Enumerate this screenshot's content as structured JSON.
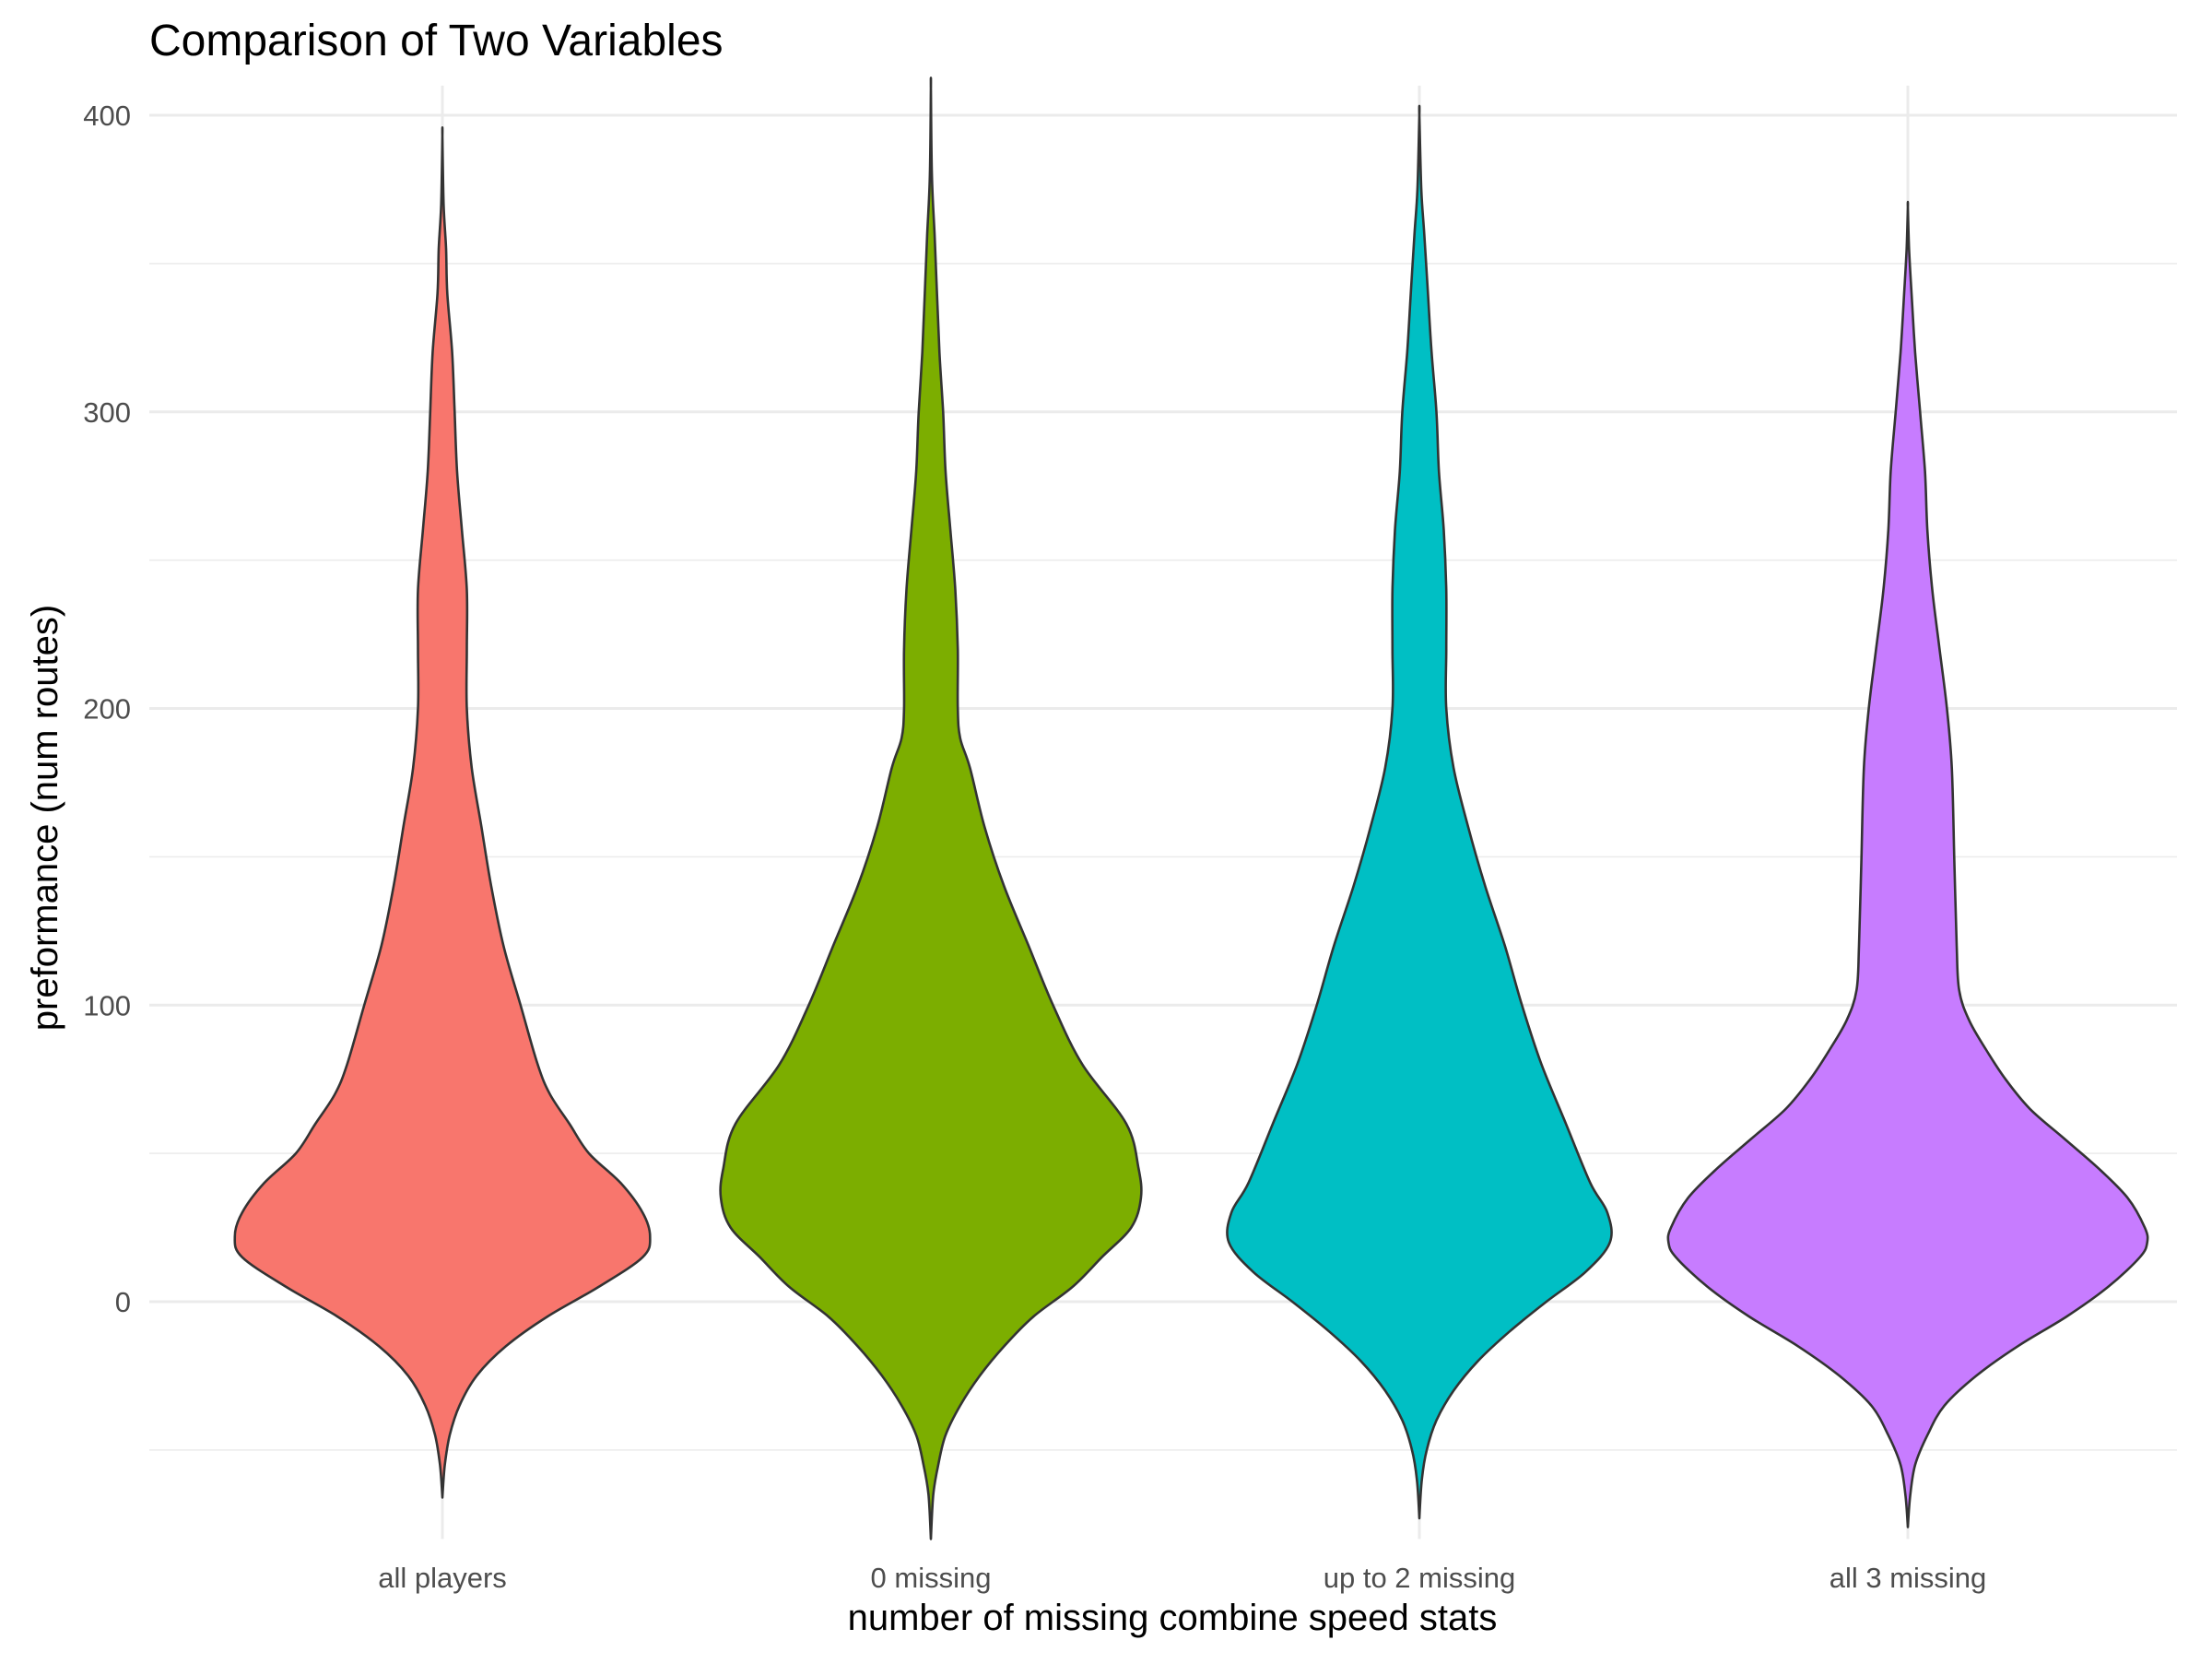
{
  "chart_data": {
    "type": "violin",
    "title": "Comparison of Two Variables",
    "xlabel": "number of missing combine speed stats",
    "ylabel": "preformance (num routes)",
    "ylim": [
      -80,
      410
    ],
    "yticks": [
      0,
      100,
      200,
      300,
      400
    ],
    "grid": true,
    "legend": "none",
    "categories": [
      "all players",
      "0 missing",
      "up to 2 missing",
      "all 3 missing"
    ],
    "colors": [
      "#F8766D",
      "#7CAE00",
      "#00BFC4",
      "#C77CFF"
    ],
    "series": [
      {
        "category": "all players",
        "min": -66,
        "max": 393,
        "profile": [
          [
            -66,
            0
          ],
          [
            -55,
            0.01
          ],
          [
            -45,
            0.03
          ],
          [
            -35,
            0.07
          ],
          [
            -25,
            0.14
          ],
          [
            -15,
            0.26
          ],
          [
            -5,
            0.43
          ],
          [
            5,
            0.64
          ],
          [
            15,
            0.82
          ],
          [
            22,
            0.85
          ],
          [
            30,
            0.82
          ],
          [
            40,
            0.73
          ],
          [
            50,
            0.6
          ],
          [
            60,
            0.52
          ],
          [
            70,
            0.44
          ],
          [
            80,
            0.39
          ],
          [
            100,
            0.32
          ],
          [
            120,
            0.25
          ],
          [
            140,
            0.2
          ],
          [
            160,
            0.16
          ],
          [
            180,
            0.12
          ],
          [
            200,
            0.1
          ],
          [
            220,
            0.1
          ],
          [
            240,
            0.1
          ],
          [
            260,
            0.08
          ],
          [
            280,
            0.06
          ],
          [
            300,
            0.05
          ],
          [
            320,
            0.04
          ],
          [
            340,
            0.02
          ],
          [
            355,
            0.015
          ],
          [
            370,
            0.005
          ],
          [
            393,
            0
          ]
        ]
      },
      {
        "category": "0 missing",
        "min": -80,
        "max": 409,
        "profile": [
          [
            -80,
            0
          ],
          [
            -65,
            0.01
          ],
          [
            -55,
            0.03
          ],
          [
            -45,
            0.06
          ],
          [
            -35,
            0.12
          ],
          [
            -25,
            0.2
          ],
          [
            -15,
            0.3
          ],
          [
            -5,
            0.42
          ],
          [
            5,
            0.58
          ],
          [
            15,
            0.7
          ],
          [
            25,
            0.82
          ],
          [
            35,
            0.86
          ],
          [
            45,
            0.85
          ],
          [
            60,
            0.8
          ],
          [
            80,
            0.62
          ],
          [
            100,
            0.5
          ],
          [
            120,
            0.4
          ],
          [
            140,
            0.3
          ],
          [
            160,
            0.22
          ],
          [
            180,
            0.16
          ],
          [
            190,
            0.12
          ],
          [
            200,
            0.11
          ],
          [
            220,
            0.11
          ],
          [
            240,
            0.1
          ],
          [
            260,
            0.08
          ],
          [
            280,
            0.06
          ],
          [
            300,
            0.05
          ],
          [
            320,
            0.035
          ],
          [
            340,
            0.025
          ],
          [
            360,
            0.015
          ],
          [
            380,
            0.004
          ],
          [
            409,
            0
          ]
        ]
      },
      {
        "category": "up to 2 missing",
        "min": -73,
        "max": 400,
        "profile": [
          [
            -73,
            0
          ],
          [
            -60,
            0.01
          ],
          [
            -50,
            0.03
          ],
          [
            -40,
            0.07
          ],
          [
            -30,
            0.14
          ],
          [
            -20,
            0.24
          ],
          [
            -10,
            0.37
          ],
          [
            0,
            0.52
          ],
          [
            10,
            0.68
          ],
          [
            20,
            0.78
          ],
          [
            30,
            0.77
          ],
          [
            40,
            0.7
          ],
          [
            60,
            0.6
          ],
          [
            80,
            0.5
          ],
          [
            100,
            0.42
          ],
          [
            120,
            0.35
          ],
          [
            140,
            0.27
          ],
          [
            160,
            0.2
          ],
          [
            180,
            0.14
          ],
          [
            200,
            0.11
          ],
          [
            220,
            0.11
          ],
          [
            240,
            0.11
          ],
          [
            260,
            0.1
          ],
          [
            280,
            0.08
          ],
          [
            300,
            0.07
          ],
          [
            320,
            0.05
          ],
          [
            340,
            0.035
          ],
          [
            360,
            0.02
          ],
          [
            375,
            0.008
          ],
          [
            400,
            0
          ]
        ]
      },
      {
        "category": "all 3 missing",
        "min": -76,
        "max": 369,
        "profile": [
          [
            -76,
            0
          ],
          [
            -65,
            0.01
          ],
          [
            -55,
            0.03
          ],
          [
            -45,
            0.08
          ],
          [
            -35,
            0.15
          ],
          [
            -25,
            0.28
          ],
          [
            -15,
            0.45
          ],
          [
            -5,
            0.65
          ],
          [
            5,
            0.82
          ],
          [
            15,
            0.95
          ],
          [
            20,
            0.98
          ],
          [
            25,
            0.97
          ],
          [
            35,
            0.9
          ],
          [
            45,
            0.78
          ],
          [
            55,
            0.64
          ],
          [
            65,
            0.5
          ],
          [
            75,
            0.4
          ],
          [
            85,
            0.32
          ],
          [
            95,
            0.25
          ],
          [
            105,
            0.21
          ],
          [
            120,
            0.2
          ],
          [
            150,
            0.19
          ],
          [
            180,
            0.18
          ],
          [
            200,
            0.16
          ],
          [
            220,
            0.13
          ],
          [
            240,
            0.1
          ],
          [
            260,
            0.08
          ],
          [
            280,
            0.07
          ],
          [
            300,
            0.05
          ],
          [
            320,
            0.03
          ],
          [
            340,
            0.015
          ],
          [
            355,
            0.005
          ],
          [
            369,
            0
          ]
        ]
      }
    ]
  }
}
